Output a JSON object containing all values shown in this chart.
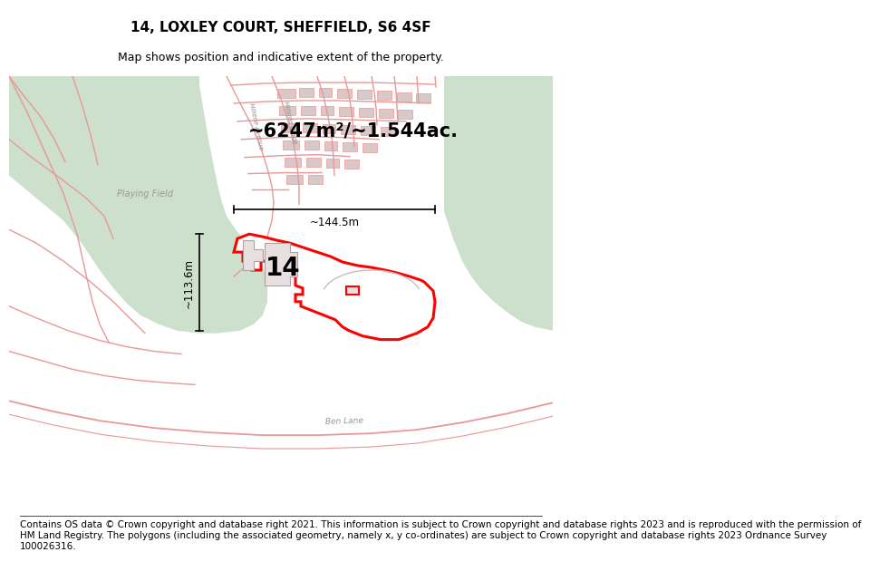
{
  "title_line1": "14, LOXLEY COURT, SHEFFIELD, S6 4SF",
  "title_line2": "Map shows position and indicative extent of the property.",
  "area_label": "~6247m²/~1.544ac.",
  "width_label": "~144.5m",
  "height_label": "~113.6m",
  "property_number": "14",
  "footer_text": "Contains OS data © Crown copyright and database right 2021. This information is subject to Crown copyright and database rights 2023 and is reproduced with the permission of\nHM Land Registry. The polygons (including the associated geometry, namely x, y co-ordinates) are subject to Crown copyright and database rights 2023 Ordnance Survey\n100026316.",
  "bg_color": "#ffffff",
  "map_bg": "#f5eeee",
  "road_color": "#e89898",
  "plot_outline_color": "#ff0000",
  "green_area_color": "#cce0cc",
  "title_fontsize": 11,
  "subtitle_fontsize": 9,
  "footer_fontsize": 7.5
}
